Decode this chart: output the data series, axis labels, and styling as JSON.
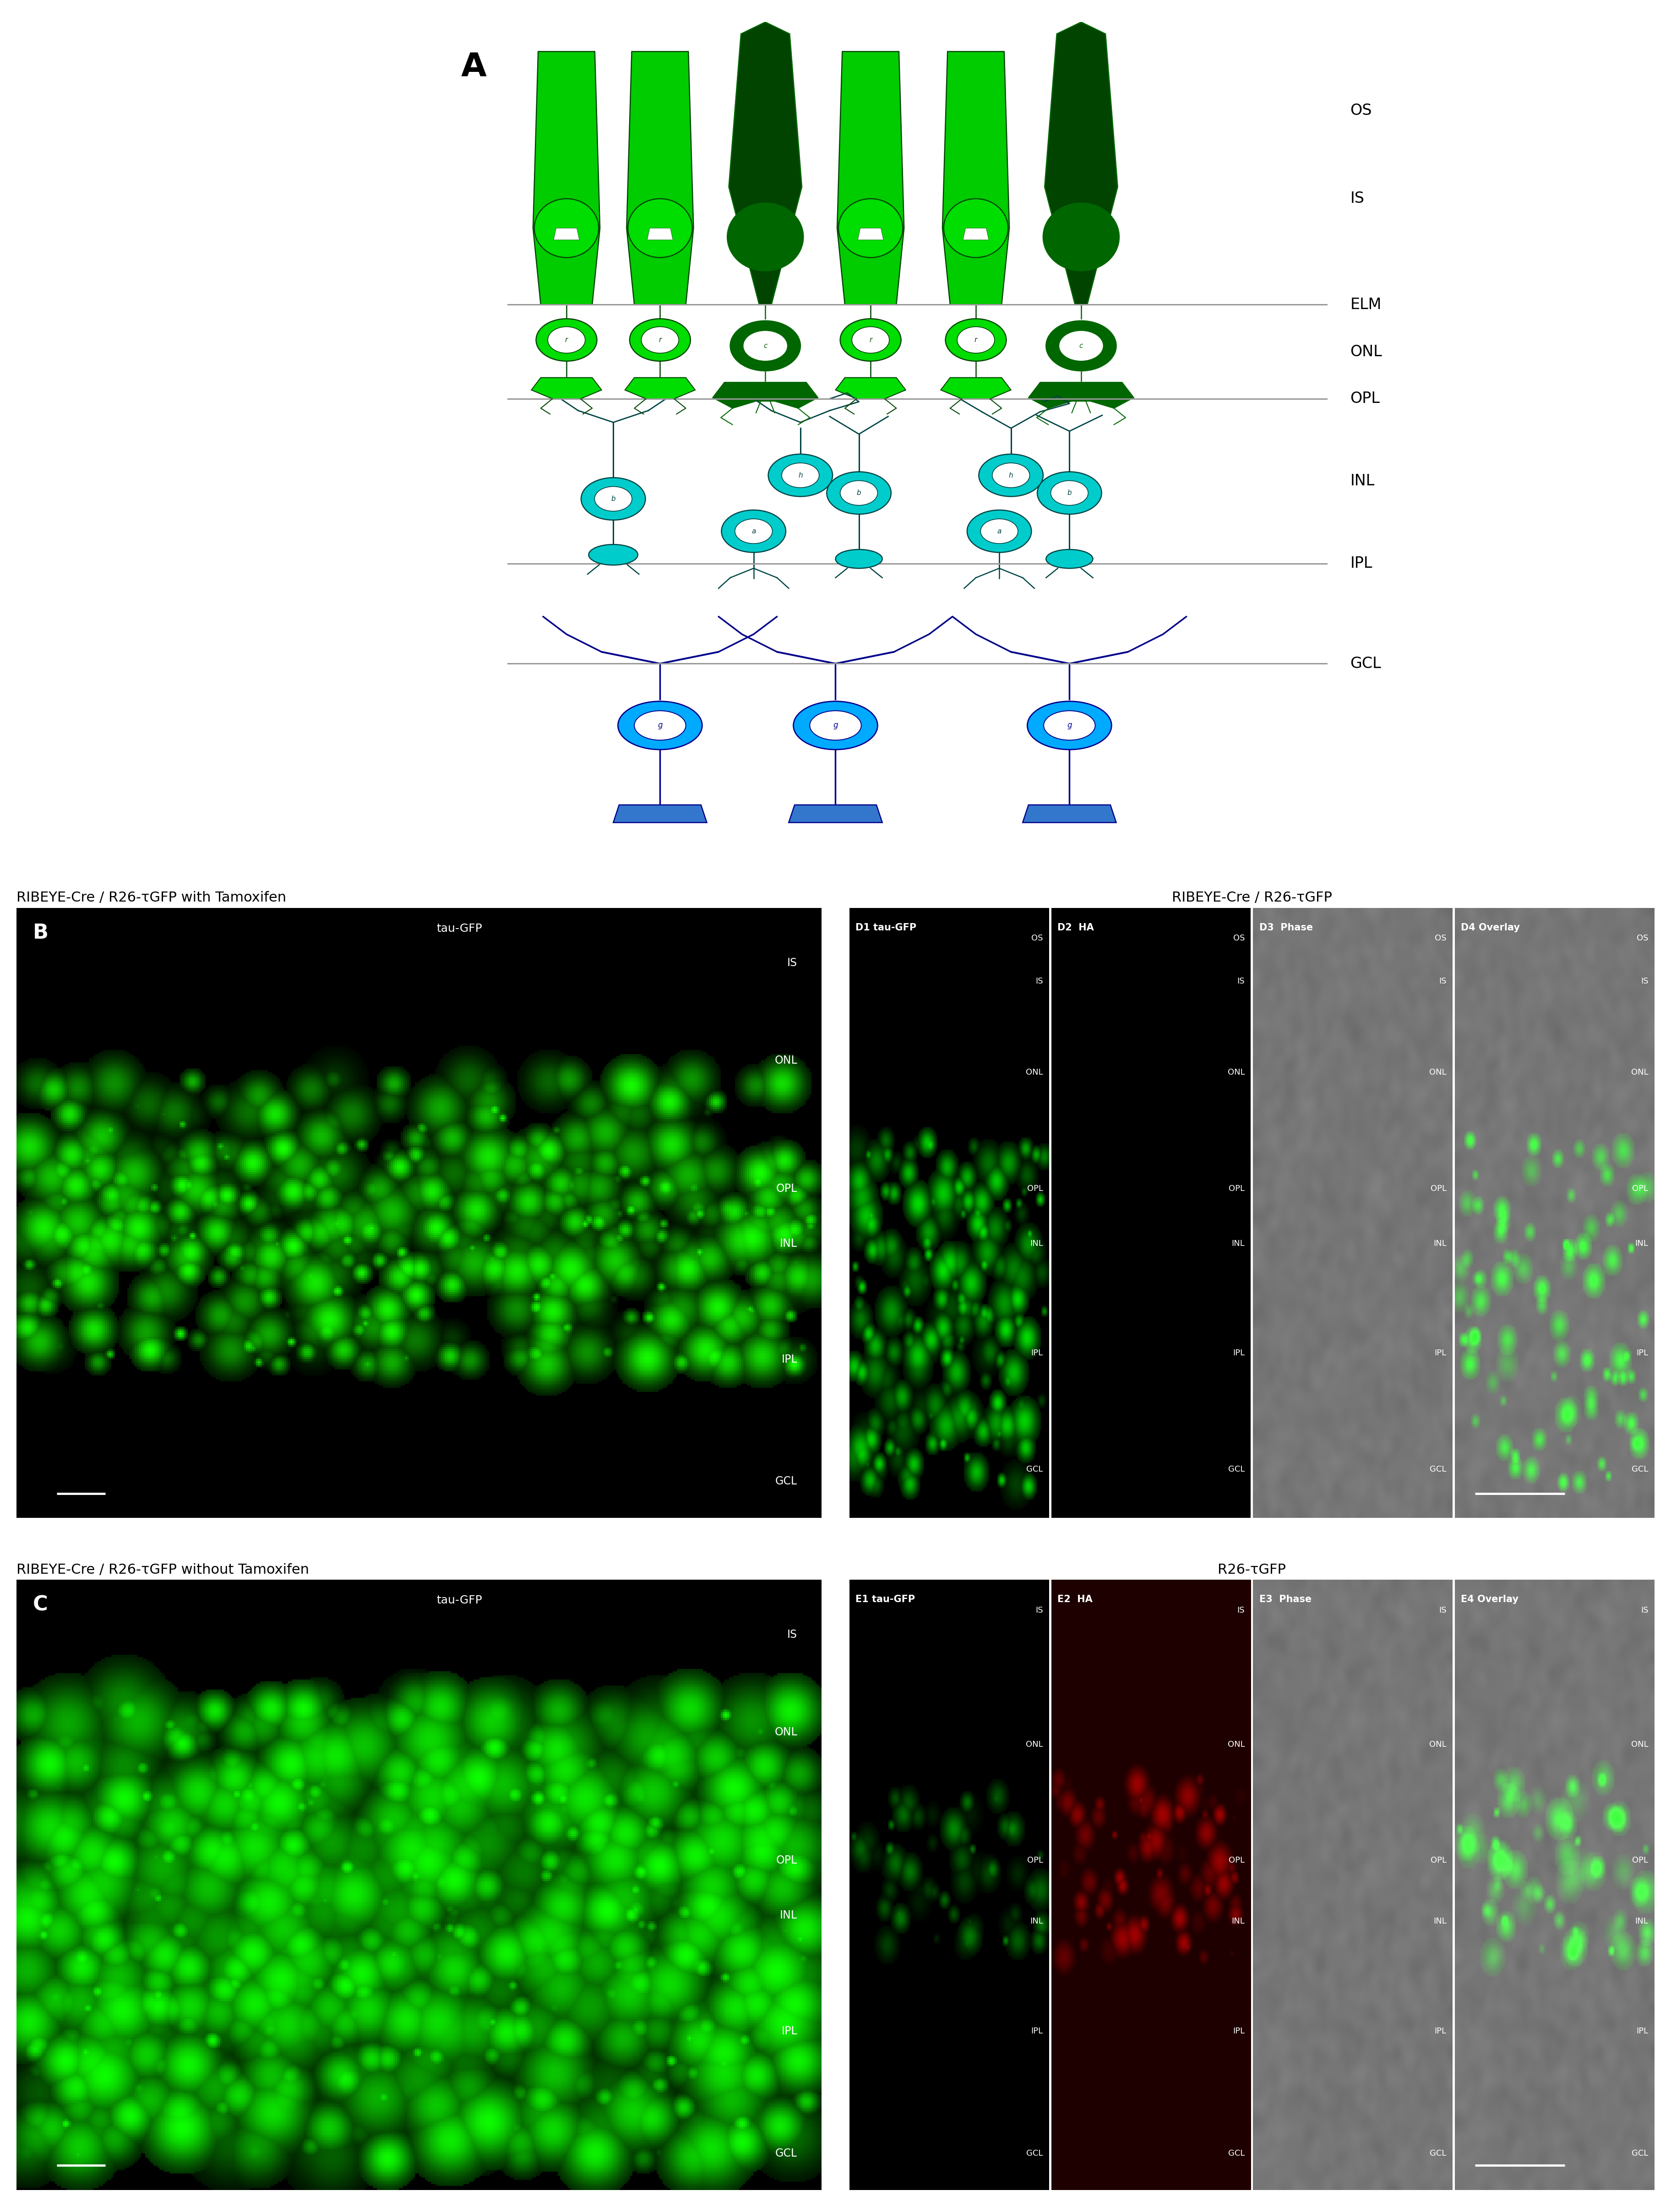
{
  "figure_width": 36.49,
  "figure_height": 48.31,
  "bg_color": "#ffffff",
  "panel_B_title": "RIBEYE-Cre / R26-τGFP with Tamoxifen",
  "panel_C_title": "RIBEYE-Cre / R26-τGFP without Tamoxifen",
  "panel_D_title": "RIBEYE-Cre / R26-τGFP",
  "panel_E_title": "R26-τGFP",
  "panel_D_subs": [
    "D1 tau-GFP",
    "D2  HA",
    "D3  Phase",
    "D4 Overlay"
  ],
  "panel_E_subs": [
    "E1 tau-GFP",
    "E2  HA",
    "E3  Phase",
    "E4 Overlay"
  ],
  "g_bright": "#00dd00",
  "g_dark": "#004400",
  "g_med": "#007700",
  "g_dark2": "#006600",
  "c_bright": "#00cccc",
  "c_dark": "#004444",
  "c_med": "#008888",
  "b_dark": "#00008b",
  "b_med": "#0000cc",
  "b_light": "#00aaff",
  "b_mid": "#3377cc",
  "line_color": "#999999",
  "layer_y_B": {
    "IS": 0.91,
    "ONL": 0.75,
    "OPL": 0.54,
    "INL": 0.45,
    "IPL": 0.26,
    "GCL": 0.06
  },
  "layer_y_D": {
    "OS": 0.95,
    "IS": 0.88,
    "ONL": 0.73,
    "OPL": 0.54,
    "INL": 0.45,
    "IPL": 0.27,
    "GCL": 0.08
  },
  "layer_y_E": {
    "IS": 0.95,
    "ONL": 0.73,
    "OPL": 0.54,
    "INL": 0.44,
    "IPL": 0.26,
    "GCL": 0.06
  }
}
